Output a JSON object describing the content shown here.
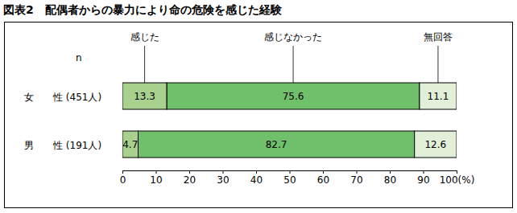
{
  "chart_data": {
    "type": "bar",
    "title": "図表2　配偶者からの暴力により命の危険を感じた経験",
    "ylabel": "n",
    "categories": [
      "女　　性 (451人)",
      "男　　性 (191人)"
    ],
    "series": [
      {
        "name": "感じた",
        "color": "#a9d18e",
        "values": [
          13.3,
          4.7
        ]
      },
      {
        "name": "感じなかった",
        "color": "#70bf6a",
        "values": [
          75.6,
          82.7
        ]
      },
      {
        "name": "無回答",
        "color": "#e2f0d9",
        "values": [
          11.1,
          12.6
        ]
      }
    ],
    "xlim": [
      0,
      100
    ],
    "xticks": [
      0,
      10,
      20,
      30,
      40,
      50,
      60,
      70,
      80,
      90,
      {
        "value": 100,
        "label": "100(%)"
      }
    ],
    "orientation": "horizontal",
    "stacked": true,
    "data_labels": true,
    "legend": "top",
    "grid": false
  }
}
